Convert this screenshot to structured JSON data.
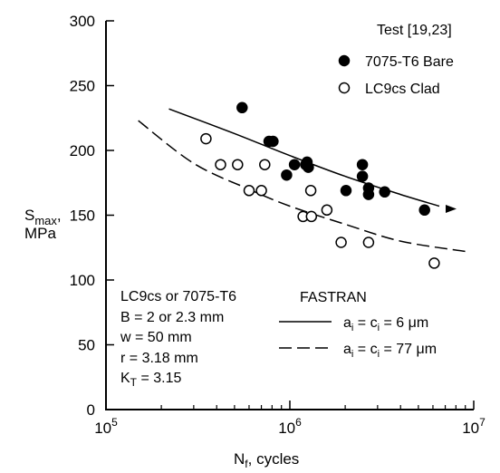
{
  "chart_data": {
    "type": "scatter",
    "xscale": "log",
    "xlim": [
      100000,
      10000000
    ],
    "ylim": [
      0,
      300
    ],
    "grid": false,
    "xlabel": {
      "main": "N",
      "sub": "f",
      "rest": ", cycles"
    },
    "ylabel": {
      "line1_main": "S",
      "line1_sub": "max",
      "line1_rest": ",",
      "line2": "MPa"
    },
    "xticks": [
      {
        "value": 100000,
        "base": "10",
        "exp": "5"
      },
      {
        "value": 1000000,
        "base": "10",
        "exp": "6"
      },
      {
        "value": 10000000,
        "base": "10",
        "exp": "7"
      }
    ],
    "yticks": [
      "0",
      "50",
      "100",
      "150",
      "200",
      "250",
      "300"
    ],
    "legend_title": "Test [19,23]",
    "series": [
      {
        "name": "7075-T6 Bare",
        "marker": "filled-circle",
        "points": [
          [
            550000,
            233
          ],
          [
            770000,
            207
          ],
          [
            810000,
            207
          ],
          [
            960000,
            181
          ],
          [
            1060000,
            189
          ],
          [
            1220000,
            189
          ],
          [
            1240000,
            191
          ],
          [
            1260000,
            187
          ],
          [
            2020000,
            169
          ],
          [
            2480000,
            180
          ],
          [
            2480000,
            189
          ],
          [
            2680000,
            171
          ],
          [
            2680000,
            166
          ],
          [
            3280000,
            168
          ],
          [
            5400000,
            154
          ]
        ]
      },
      {
        "name": "LC9cs Clad",
        "marker": "open-circle",
        "points": [
          [
            350000,
            209
          ],
          [
            420000,
            189
          ],
          [
            520000,
            189
          ],
          [
            600000,
            169
          ],
          [
            700000,
            169
          ],
          [
            730000,
            189
          ],
          [
            1180000,
            149
          ],
          [
            1310000,
            149
          ],
          [
            1300000,
            169
          ],
          [
            1590000,
            154
          ],
          [
            1900000,
            129
          ],
          [
            2680000,
            129
          ],
          [
            6100000,
            113
          ]
        ]
      }
    ],
    "model_curves": [
      {
        "style": "solid",
        "label": {
          "a": "a",
          "asub": "i",
          "eq1": " = c",
          "csub": "i",
          "val": " = 6 μm"
        },
        "points": [
          [
            220000,
            232
          ],
          [
            500000,
            213
          ],
          [
            1000000,
            196
          ],
          [
            2000000,
            180
          ],
          [
            4000000,
            166
          ],
          [
            6500000,
            157
          ]
        ]
      },
      {
        "style": "dashed",
        "label": {
          "a": "a",
          "asub": "i",
          "eq1": " = c",
          "csub": "i",
          "val": " = 77 μm"
        },
        "points": [
          [
            150000,
            223
          ],
          [
            300000,
            190
          ],
          [
            600000,
            170
          ],
          [
            1000000,
            157
          ],
          [
            2000000,
            143
          ],
          [
            4000000,
            130
          ],
          [
            9000000,
            122
          ]
        ]
      }
    ],
    "model_title": "FASTRAN",
    "specimen_notes": {
      "line1": "LC9cs or 7075-T6",
      "line2": "B = 2 or 2.3 mm",
      "line3": "w = 50 mm",
      "line4": "r = 3.18 mm",
      "line5_main": "K",
      "line5_sub": "T",
      "line5_rest": " = 3.15"
    },
    "colors": {
      "ink": "#000000",
      "background": "#ffffff"
    }
  }
}
